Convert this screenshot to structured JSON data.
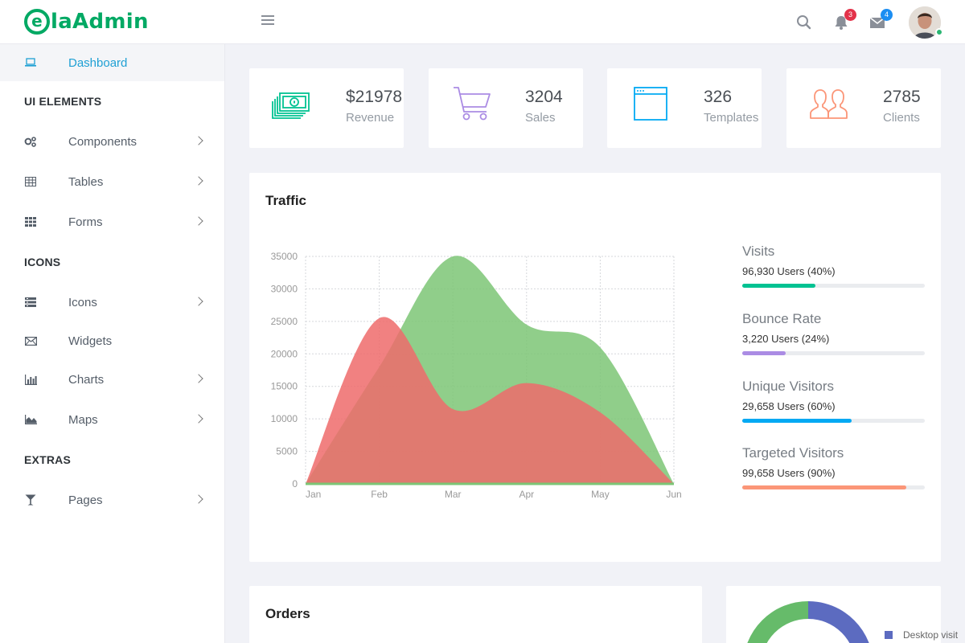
{
  "brand": {
    "logo_e": "e",
    "logo_rest": "laAdmin",
    "color": "#03a964"
  },
  "header": {
    "notifications": {
      "icon": "bell-icon",
      "count": "3",
      "badge_color": "#e3324a"
    },
    "messages": {
      "icon": "envelope-icon",
      "count": "4",
      "badge_color": "#1c8ef2"
    },
    "search_icon": "search-icon"
  },
  "sidebar": {
    "dashboard": "Dashboard",
    "sections": {
      "ui": "UI ELEMENTS",
      "icons": "ICONS",
      "extras": "EXTRAS"
    },
    "items": {
      "components": "Components",
      "tables": "Tables",
      "forms": "Forms",
      "icons": "Icons",
      "widgets": "Widgets",
      "charts": "Charts",
      "maps": "Maps",
      "pages": "Pages"
    }
  },
  "stats": [
    {
      "value": "$21978",
      "label": "Revenue",
      "icon": "money-icon",
      "color": "#00c292"
    },
    {
      "value": "3204",
      "label": "Sales",
      "icon": "cart-icon",
      "color": "#ab8ce4"
    },
    {
      "value": "326",
      "label": "Templates",
      "icon": "browser-icon",
      "color": "#03a9f3"
    },
    {
      "value": "2785",
      "label": "Clients",
      "icon": "users-icon",
      "color": "#fb9678"
    }
  ],
  "traffic": {
    "title": "Traffic",
    "legend": [
      {
        "name": "Visits",
        "value": "96,930 Users (40%)",
        "percent": 40,
        "color": "#00c292"
      },
      {
        "name": "Bounce Rate",
        "value": "3,220 Users (24%)",
        "percent": 24,
        "color": "#ab8ce4"
      },
      {
        "name": "Unique Visitors",
        "value": "29,658 Users (60%)",
        "percent": 60,
        "color": "#03a9f3"
      },
      {
        "name": "Targeted Visitors",
        "value": "99,658 Users (90%)",
        "percent": 90,
        "color": "#fb9678"
      }
    ]
  },
  "chart_data": {
    "type": "area",
    "x": [
      "Jan",
      "Feb",
      "Mar",
      "Apr",
      "May",
      "Jun"
    ],
    "ylim": [
      0,
      35000
    ],
    "yticks": [
      "35000",
      "30000",
      "25000",
      "20000",
      "15000",
      "10000",
      "5000",
      "0"
    ],
    "grid": true,
    "series": [
      {
        "values": [
          0,
          18000,
          35000,
          24500,
          21000,
          0
        ],
        "color": "#7cc576"
      },
      {
        "values": [
          0,
          25500,
          11500,
          15500,
          11000,
          0
        ],
        "color": "#ef6b6b"
      }
    ]
  },
  "orders": {
    "title": "Orders"
  },
  "donut": {
    "legend_label": "Desktop visit",
    "legend_color": "#5c6bc0",
    "colors": [
      "#5c6bc0",
      "#66bb6a"
    ]
  }
}
